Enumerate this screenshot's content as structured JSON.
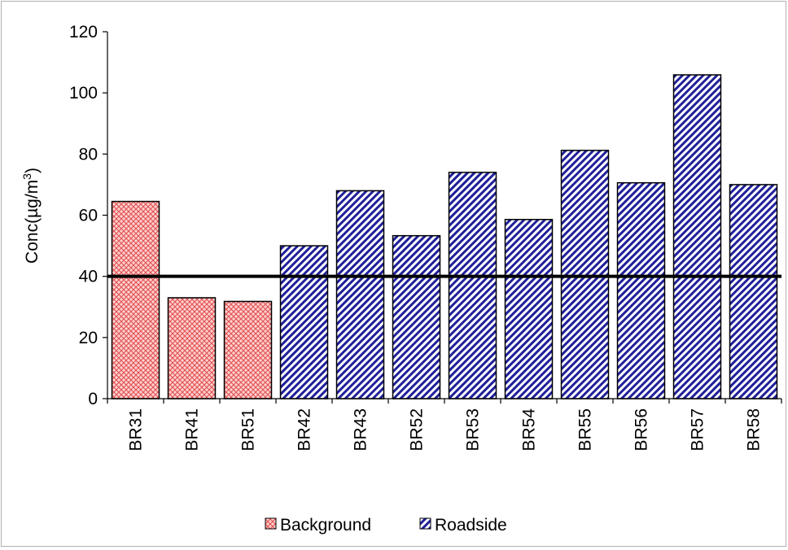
{
  "chart_data": {
    "type": "bar",
    "categories": [
      "BR31",
      "BR41",
      "BR51",
      "BR42",
      "BR43",
      "BR52",
      "BR53",
      "BR54",
      "BR55",
      "BR56",
      "BR57",
      "BR58"
    ],
    "values": [
      64.5,
      33,
      31.8,
      50,
      68,
      53.3,
      74,
      58.6,
      81.2,
      70.6,
      105.9,
      70
    ],
    "groups": [
      "Background",
      "Background",
      "Background",
      "Roadside",
      "Roadside",
      "Roadside",
      "Roadside",
      "Roadside",
      "Roadside",
      "Roadside",
      "Roadside",
      "Roadside"
    ],
    "series": [
      {
        "name": "Background",
        "pattern": "crosshatch",
        "color": "#f08080"
      },
      {
        "name": "Roadside",
        "pattern": "diagonal",
        "color": "#1f1f9a"
      }
    ],
    "title": "",
    "xlabel": "",
    "ylabel": "Conc(µg/m³)",
    "ylabel_main": "Conc(µg/m",
    "ylabel_sup": "3",
    "ylabel_close": ")",
    "ylim": [
      0,
      120
    ],
    "yticks": [
      0,
      20,
      40,
      60,
      80,
      100,
      120
    ],
    "reference_line": 40,
    "grid": false,
    "legend_position": "bottom"
  }
}
